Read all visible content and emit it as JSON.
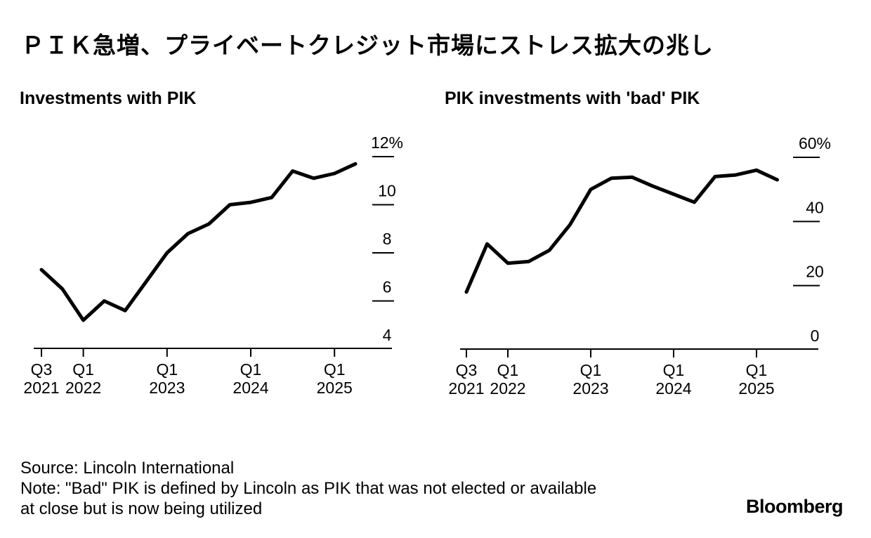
{
  "title": "ＰＩＫ急増、プライベートクレジット市場にストレス拡大の兆し",
  "chart_data": [
    {
      "type": "line",
      "title": "Investments with PIK",
      "xlabel": "",
      "ylabel": "",
      "unit": "%",
      "ylim": [
        4,
        12
      ],
      "yticks": [
        {
          "value": 12,
          "label": "12%"
        },
        {
          "value": 10,
          "label": "10"
        },
        {
          "value": 8,
          "label": "8"
        },
        {
          "value": 6,
          "label": "6"
        },
        {
          "value": 4,
          "label": "4"
        }
      ],
      "xticks": [
        {
          "index": 0,
          "line1": "Q3",
          "line2": "2021"
        },
        {
          "index": 2,
          "line1": "Q1",
          "line2": "2022"
        },
        {
          "index": 6,
          "line1": "Q1",
          "line2": "2023"
        },
        {
          "index": 10,
          "line1": "Q1",
          "line2": "2024"
        },
        {
          "index": 14,
          "line1": "Q1",
          "line2": "2025"
        }
      ],
      "x": [
        "Q3 2021",
        "Q4 2021",
        "Q1 2022",
        "Q2 2022",
        "Q3 2022",
        "Q4 2022",
        "Q1 2023",
        "Q2 2023",
        "Q3 2023",
        "Q4 2023",
        "Q1 2024",
        "Q2 2024",
        "Q3 2024",
        "Q4 2024",
        "Q1 2025",
        "Q2 2025"
      ],
      "series": [
        {
          "name": "Investments with PIK",
          "values": [
            7.3,
            6.5,
            5.2,
            6.0,
            5.6,
            6.8,
            8.0,
            8.8,
            9.2,
            10.0,
            10.1,
            10.3,
            11.4,
            11.1,
            11.3,
            11.7
          ]
        }
      ]
    },
    {
      "type": "line",
      "title": "PIK investments with 'bad' PIK",
      "xlabel": "",
      "ylabel": "",
      "unit": "%",
      "ylim": [
        0,
        60
      ],
      "yticks": [
        {
          "value": 60,
          "label": "60%"
        },
        {
          "value": 40,
          "label": "40"
        },
        {
          "value": 20,
          "label": "20"
        },
        {
          "value": 0,
          "label": "0"
        }
      ],
      "xticks": [
        {
          "index": 0,
          "line1": "Q3",
          "line2": "2021"
        },
        {
          "index": 2,
          "line1": "Q1",
          "line2": "2022"
        },
        {
          "index": 6,
          "line1": "Q1",
          "line2": "2023"
        },
        {
          "index": 10,
          "line1": "Q1",
          "line2": "2024"
        },
        {
          "index": 14,
          "line1": "Q1",
          "line2": "2025"
        }
      ],
      "x": [
        "Q3 2021",
        "Q4 2021",
        "Q1 2022",
        "Q2 2022",
        "Q3 2022",
        "Q4 2022",
        "Q1 2023",
        "Q2 2023",
        "Q3 2023",
        "Q4 2023",
        "Q1 2024",
        "Q2 2024",
        "Q3 2024",
        "Q4 2024",
        "Q1 2025",
        "Q2 2025"
      ],
      "series": [
        {
          "name": "PIK investments with 'bad' PIK",
          "values": [
            18,
            33,
            27,
            27.5,
            31,
            39,
            50,
            53.5,
            53.8,
            51,
            48.5,
            46,
            54,
            54.5,
            56,
            53
          ]
        }
      ]
    }
  ],
  "footer": {
    "source": "Source: Lincoln International",
    "note_line1": "Note: \"Bad\" PIK is defined by Lincoln as PIK that was not elected or available",
    "note_line2": "at close but is now being utilized"
  },
  "brand": "Bloomberg",
  "colors": {
    "line": "#000000",
    "background": "#ffffff"
  }
}
